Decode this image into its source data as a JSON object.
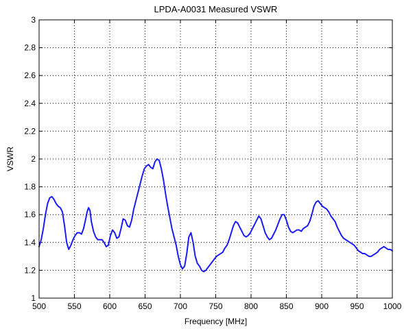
{
  "chart_data": {
    "type": "line",
    "title": "LPDA-A0031 Measured VSWR",
    "xlabel": "Frequency [MHz]",
    "ylabel": "VSWR",
    "xlim": [
      500,
      1000
    ],
    "ylim": [
      1,
      3
    ],
    "x_ticks": [
      "500",
      "550",
      "600",
      "650",
      "700",
      "750",
      "800",
      "850",
      "900",
      "950",
      "1000"
    ],
    "y_ticks": [
      "1",
      "1.2",
      "1.4",
      "1.6",
      "1.8",
      "2",
      "2.2",
      "2.4",
      "2.6",
      "2.8",
      "3"
    ],
    "grid": true,
    "colors": {
      "series": "#1a1aff",
      "grid": "#000000",
      "axes": "#000000"
    },
    "series": [
      {
        "x": [
          500,
          503,
          506,
          509,
          512,
          515,
          518,
          521,
          524,
          527,
          530,
          533,
          536,
          539,
          542,
          545,
          548,
          551,
          554,
          557,
          560,
          563,
          566,
          568,
          570,
          572,
          574,
          577,
          580,
          583,
          586,
          589,
          592,
          595,
          598,
          601,
          604,
          607,
          610,
          613,
          616,
          619,
          622,
          625,
          628,
          631,
          634,
          637,
          640,
          643,
          646,
          649,
          652,
          655,
          658,
          661,
          664,
          667,
          670,
          673,
          676,
          679,
          682,
          685,
          688,
          691,
          694,
          697,
          700,
          703,
          706,
          709,
          712,
          715,
          718,
          721,
          724,
          727,
          730,
          733,
          736,
          739,
          742,
          745,
          748,
          751,
          754,
          757,
          760,
          763,
          766,
          769,
          772,
          775,
          778,
          781,
          784,
          787,
          790,
          793,
          796,
          799,
          802,
          805,
          808,
          811,
          814,
          817,
          820,
          823,
          826,
          829,
          832,
          835,
          838,
          841,
          844,
          847,
          850,
          853,
          856,
          859,
          862,
          865,
          868,
          871,
          874,
          877,
          880,
          883,
          886,
          889,
          892,
          895,
          898,
          901,
          904,
          907,
          910,
          913,
          916,
          919,
          922,
          925,
          928,
          931,
          934,
          937,
          940,
          943,
          946,
          949,
          952,
          955,
          958,
          961,
          964,
          967,
          970,
          973,
          976,
          979,
          982,
          985,
          988,
          991,
          994,
          997,
          1000
        ],
        "values": [
          1.37,
          1.42,
          1.5,
          1.6,
          1.68,
          1.72,
          1.73,
          1.71,
          1.68,
          1.66,
          1.65,
          1.62,
          1.52,
          1.4,
          1.35,
          1.38,
          1.42,
          1.45,
          1.47,
          1.47,
          1.46,
          1.5,
          1.57,
          1.62,
          1.65,
          1.63,
          1.55,
          1.48,
          1.44,
          1.42,
          1.42,
          1.42,
          1.4,
          1.37,
          1.38,
          1.45,
          1.49,
          1.47,
          1.43,
          1.44,
          1.5,
          1.57,
          1.56,
          1.52,
          1.51,
          1.56,
          1.64,
          1.7,
          1.76,
          1.82,
          1.88,
          1.93,
          1.95,
          1.96,
          1.94,
          1.93,
          1.98,
          2.0,
          1.99,
          1.93,
          1.85,
          1.75,
          1.66,
          1.58,
          1.5,
          1.44,
          1.38,
          1.3,
          1.24,
          1.21,
          1.23,
          1.32,
          1.44,
          1.47,
          1.4,
          1.3,
          1.25,
          1.23,
          1.2,
          1.19,
          1.2,
          1.22,
          1.24,
          1.26,
          1.28,
          1.3,
          1.31,
          1.32,
          1.33,
          1.36,
          1.38,
          1.42,
          1.47,
          1.52,
          1.55,
          1.54,
          1.51,
          1.48,
          1.45,
          1.44,
          1.45,
          1.47,
          1.5,
          1.53,
          1.56,
          1.59,
          1.57,
          1.52,
          1.47,
          1.44,
          1.42,
          1.43,
          1.46,
          1.49,
          1.53,
          1.57,
          1.6,
          1.6,
          1.56,
          1.51,
          1.48,
          1.47,
          1.48,
          1.49,
          1.49,
          1.48,
          1.5,
          1.51,
          1.52,
          1.55,
          1.6,
          1.66,
          1.69,
          1.7,
          1.68,
          1.66,
          1.65,
          1.64,
          1.62,
          1.59,
          1.57,
          1.55,
          1.51,
          1.48,
          1.45,
          1.43,
          1.42,
          1.41,
          1.4,
          1.39,
          1.38,
          1.36,
          1.34,
          1.33,
          1.32,
          1.32,
          1.31,
          1.3,
          1.3,
          1.31,
          1.32,
          1.33,
          1.35,
          1.36,
          1.37,
          1.36,
          1.35,
          1.35,
          1.34
        ]
      }
    ]
  }
}
